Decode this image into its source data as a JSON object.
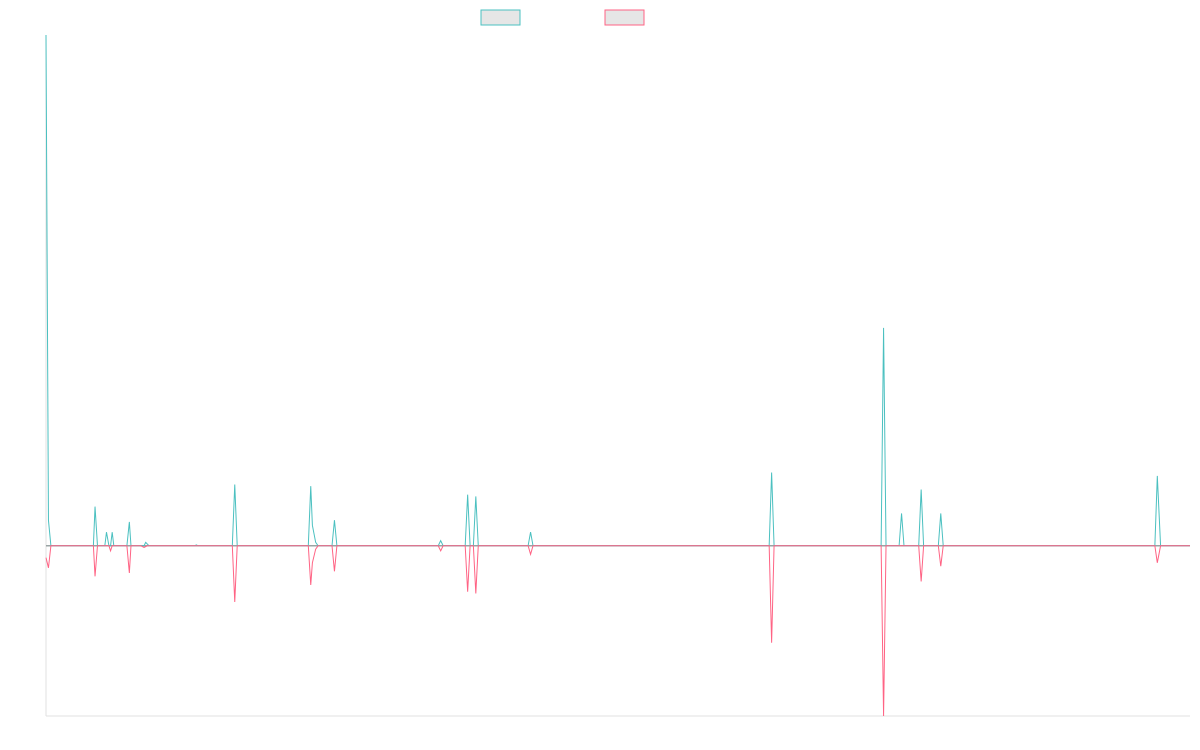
{
  "colors": {
    "series_a": "#4bc0c0",
    "series_b": "#ff6384",
    "legend_fill": "#e6e6e6",
    "axis": "#e0e0e0"
  },
  "chart_data": {
    "type": "line",
    "title": "",
    "xlabel": "",
    "ylabel": "",
    "x_tick_labels": [],
    "y_tick_labels": [],
    "legend": {
      "placement": "top-center",
      "shows_names": false
    },
    "grid": false,
    "x_range": [
      0,
      140
    ],
    "y_range": [
      -100,
      300
    ],
    "series": [
      {
        "color": "#4bc0c0",
        "points": [
          [
            0,
            300
          ],
          [
            0.3,
            15
          ],
          [
            0.6,
            0
          ],
          [
            5.8,
            0
          ],
          [
            6,
            23
          ],
          [
            6.3,
            0
          ],
          [
            7.2,
            0
          ],
          [
            7.4,
            8
          ],
          [
            7.7,
            0
          ],
          [
            7.9,
            0
          ],
          [
            8.1,
            8
          ],
          [
            8.3,
            0
          ],
          [
            9.9,
            0
          ],
          [
            10.2,
            14
          ],
          [
            10.4,
            0
          ],
          [
            12,
            0
          ],
          [
            12.2,
            2
          ],
          [
            12.6,
            0
          ],
          [
            18.2,
            0
          ],
          [
            18.4,
            0.5
          ],
          [
            18.6,
            0
          ],
          [
            22.8,
            0
          ],
          [
            23.1,
            36
          ],
          [
            23.4,
            0
          ],
          [
            32.1,
            0
          ],
          [
            32.4,
            35
          ],
          [
            32.6,
            12
          ],
          [
            33,
            2
          ],
          [
            33.3,
            0
          ],
          [
            35,
            0
          ],
          [
            35.3,
            15
          ],
          [
            35.6,
            0
          ],
          [
            48,
            0
          ],
          [
            48.3,
            3
          ],
          [
            48.6,
            0
          ],
          [
            51.3,
            0
          ],
          [
            51.6,
            30
          ],
          [
            51.9,
            0
          ],
          [
            52.3,
            0
          ],
          [
            52.6,
            29
          ],
          [
            52.9,
            0
          ],
          [
            59,
            0
          ],
          [
            59.3,
            8
          ],
          [
            59.6,
            0
          ],
          [
            88.5,
            0
          ],
          [
            88.8,
            43
          ],
          [
            89.1,
            0
          ],
          [
            102.2,
            0
          ],
          [
            102.5,
            128
          ],
          [
            102.8,
            0
          ],
          [
            104.4,
            0
          ],
          [
            104.7,
            19
          ],
          [
            105,
            0
          ],
          [
            106.8,
            0
          ],
          [
            107.1,
            33
          ],
          [
            107.4,
            0
          ],
          [
            109.2,
            0
          ],
          [
            109.5,
            19
          ],
          [
            109.8,
            0
          ],
          [
            135.7,
            0
          ],
          [
            136,
            41
          ],
          [
            136.4,
            0
          ],
          [
            140,
            0
          ]
        ]
      },
      {
        "color": "#ff6384",
        "points": [
          [
            0,
            -7
          ],
          [
            0.3,
            -13
          ],
          [
            0.6,
            0
          ],
          [
            5.8,
            0
          ],
          [
            6,
            -18
          ],
          [
            6.3,
            0
          ],
          [
            7.7,
            0
          ],
          [
            7.9,
            -3
          ],
          [
            8.1,
            0
          ],
          [
            9.9,
            0
          ],
          [
            10.2,
            -16
          ],
          [
            10.4,
            0
          ],
          [
            11.6,
            0
          ],
          [
            12,
            -1
          ],
          [
            12.4,
            0
          ],
          [
            22.8,
            0
          ],
          [
            23.1,
            -33
          ],
          [
            23.4,
            0
          ],
          [
            32.1,
            0
          ],
          [
            32.4,
            -23
          ],
          [
            32.6,
            -10
          ],
          [
            33,
            -2
          ],
          [
            33.3,
            0
          ],
          [
            35,
            0
          ],
          [
            35.3,
            -15
          ],
          [
            35.6,
            0
          ],
          [
            48,
            0
          ],
          [
            48.3,
            -3
          ],
          [
            48.6,
            0
          ],
          [
            51.3,
            0
          ],
          [
            51.6,
            -27
          ],
          [
            51.9,
            0
          ],
          [
            52.3,
            0
          ],
          [
            52.6,
            -28
          ],
          [
            52.9,
            0
          ],
          [
            59,
            0
          ],
          [
            59.3,
            -5
          ],
          [
            59.6,
            0
          ],
          [
            88.5,
            0
          ],
          [
            88.8,
            -57
          ],
          [
            89.1,
            0
          ],
          [
            102.2,
            0
          ],
          [
            102.5,
            -100
          ],
          [
            102.8,
            0
          ],
          [
            106.8,
            0
          ],
          [
            107.1,
            -21
          ],
          [
            107.4,
            0
          ],
          [
            109.2,
            0
          ],
          [
            109.5,
            -12
          ],
          [
            109.8,
            0
          ],
          [
            135.7,
            0
          ],
          [
            136,
            -10
          ],
          [
            136.4,
            0
          ],
          [
            140,
            0
          ]
        ]
      }
    ]
  }
}
